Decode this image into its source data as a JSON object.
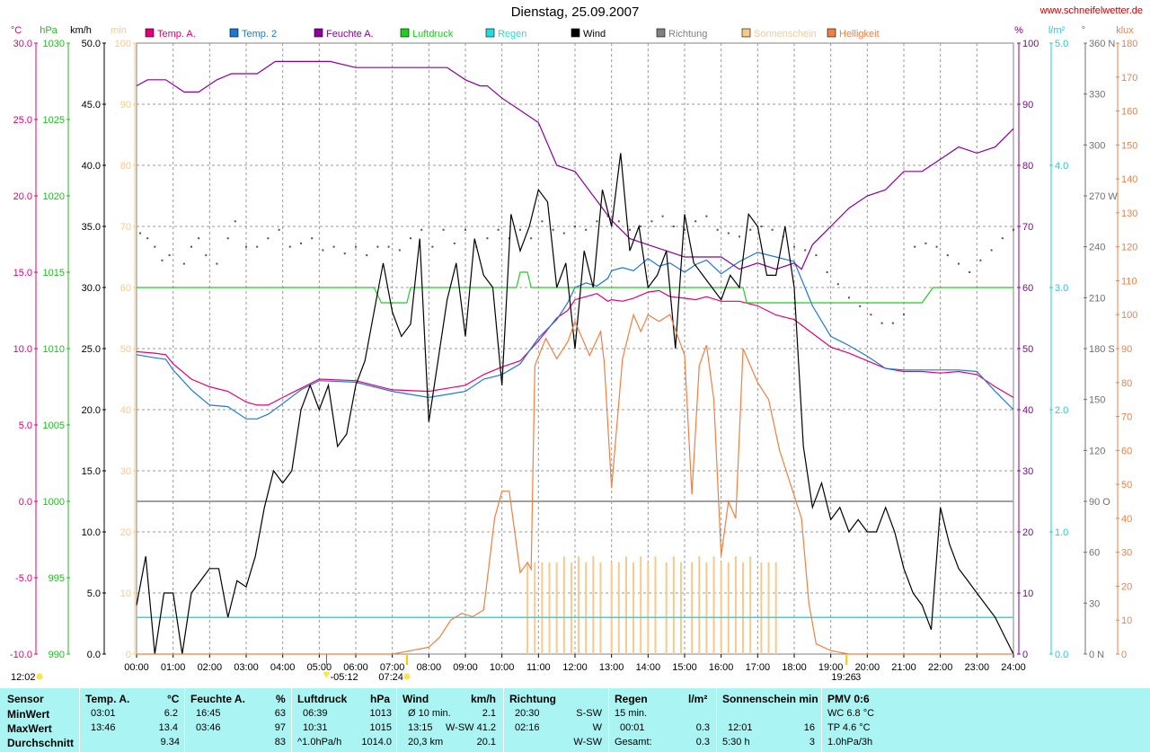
{
  "header": {
    "title": "Dienstag, 25.09.2007",
    "site": "www.schneifelwetter.de"
  },
  "legend": [
    {
      "label": "Temp. A.",
      "color": "#e0007a"
    },
    {
      "label": "Temp. 2",
      "color": "#1e78d2"
    },
    {
      "label": "Feuchte A.",
      "color": "#8a0099"
    },
    {
      "label": "Luftdruck",
      "color": "#22cc22"
    },
    {
      "label": "Regen",
      "color": "#22dddd"
    },
    {
      "label": "Wind",
      "color": "#000000"
    },
    {
      "label": "Richtung",
      "color": "#808080"
    },
    {
      "label": "Sonnenschein",
      "color": "#f7c98a"
    },
    {
      "label": "Helligkeit",
      "color": "#f08040"
    }
  ],
  "axis_units": {
    "temp": "°C",
    "hpa": "hPa",
    "kmh": "km/h",
    "min": "min",
    "pct": "%",
    "rain": "l/m²",
    "deg": "°",
    "klux": "klux"
  },
  "chart_data": {
    "type": "line",
    "x_ticks": [
      "00:00",
      "01:00",
      "02:00",
      "03:00",
      "04:00",
      "05:00",
      "06:00",
      "07:00",
      "08:00",
      "09:00",
      "10:00",
      "11:00",
      "12:00",
      "13:00",
      "14:00",
      "15:00",
      "16:00",
      "17:00",
      "18:00",
      "19:00",
      "20:00",
      "21:00",
      "22:00",
      "23:00",
      "24:00"
    ],
    "axes": {
      "temp": {
        "ticks": [
          "30.0",
          "25.0",
          "20.0",
          "15.0",
          "10.0",
          "5.0",
          "0.0",
          "-5.0",
          "-10.0"
        ],
        "range": [
          -10,
          30
        ]
      },
      "hpa": {
        "ticks": [
          "1030",
          "1025",
          "1020",
          "1015",
          "1010",
          "1005",
          "1000",
          "995",
          "990"
        ],
        "range": [
          990,
          1030
        ]
      },
      "kmh": {
        "ticks": [
          "50.0",
          "45.0",
          "40.0",
          "35.0",
          "30.0",
          "25.0",
          "20.0",
          "15.0",
          "10.0",
          "5.0",
          "0.0"
        ],
        "range": [
          0,
          50
        ]
      },
      "min": {
        "ticks": [
          "100",
          "90",
          "80",
          "70",
          "60",
          "50",
          "40",
          "30",
          "20",
          "10",
          "0"
        ],
        "range": [
          0,
          100
        ]
      },
      "pct": {
        "ticks": [
          "100",
          "90",
          "80",
          "70",
          "60",
          "50",
          "40",
          "30",
          "20",
          "10",
          "0"
        ],
        "range": [
          0,
          100
        ]
      },
      "rain": {
        "ticks": [
          "5.0",
          "4.0",
          "3.0",
          "2.0",
          "1.0",
          "0.0"
        ],
        "range": [
          0,
          5
        ]
      },
      "deg": {
        "ticks": [
          "360 N",
          "330",
          "300",
          "270 W",
          "240",
          "210",
          "180 S",
          "150",
          "120",
          "90 O",
          "60",
          "30",
          "0 N"
        ],
        "range": [
          0,
          360
        ]
      },
      "klux": {
        "ticks": [
          "180",
          "170",
          "160",
          "150",
          "140",
          "130",
          "120",
          "110",
          "100",
          "90",
          "80",
          "70",
          "60",
          "50",
          "40",
          "30",
          "20",
          "10",
          "0"
        ],
        "range": [
          0,
          180
        ]
      }
    },
    "series": [
      {
        "name": "Temp. A.",
        "axis": "temp",
        "color": "#e0007a",
        "x": [
          0,
          0.5,
          0.8,
          1,
          1.5,
          2,
          2.5,
          3,
          3.3,
          3.6,
          4,
          4.5,
          5,
          6,
          7,
          8,
          9,
          9.5,
          10,
          10.5,
          11,
          11.5,
          11.8,
          12,
          12.3,
          12.6,
          12.9,
          13,
          13.3,
          13.6,
          14,
          14.3,
          14.6,
          15,
          15.3,
          15.6,
          16,
          16.5,
          17,
          17.5,
          18,
          18.5,
          19,
          19.5,
          20,
          20.5,
          21,
          21.5,
          22,
          22.5,
          23,
          23.5,
          24
        ],
        "y": [
          9.8,
          9.7,
          9.6,
          9,
          8,
          7.5,
          7.2,
          6.5,
          6.3,
          6.3,
          6.8,
          7.4,
          8,
          7.9,
          7.3,
          7.2,
          7.6,
          8.3,
          8.8,
          9.2,
          10.5,
          12,
          12.5,
          13.2,
          13.4,
          13.6,
          13.1,
          13.2,
          13.1,
          13.3,
          13.7,
          13.8,
          13.4,
          13.3,
          13.2,
          13.4,
          13.1,
          13.1,
          12.8,
          12.2,
          11.9,
          11,
          10.1,
          9.7,
          9.2,
          8.7,
          8.5,
          8.5,
          8.4,
          8.5,
          8.3,
          7.5,
          6.8
        ]
      },
      {
        "name": "Temp. 2",
        "axis": "temp",
        "color": "#1e78d2",
        "x": [
          0,
          0.5,
          0.8,
          1,
          1.5,
          2,
          2.5,
          3,
          3.3,
          3.6,
          4,
          4.5,
          5,
          6,
          7,
          8,
          9,
          9.5,
          10,
          10.5,
          11,
          11.5,
          11.8,
          12,
          12.3,
          12.6,
          12.9,
          13,
          13.3,
          13.6,
          14,
          14.3,
          14.6,
          15,
          15.3,
          15.6,
          16,
          16.5,
          17,
          17.5,
          18,
          18.5,
          19,
          19.5,
          20,
          20.5,
          21,
          21.5,
          22,
          22.5,
          23,
          23.5,
          24
        ],
        "y": [
          9.6,
          9.4,
          9.3,
          8.6,
          7.3,
          6.3,
          6.2,
          5.4,
          5.4,
          5.7,
          6.4,
          7.3,
          7.9,
          7.8,
          7.2,
          6.8,
          7.2,
          8,
          8.3,
          9.0,
          10.7,
          11.9,
          13,
          14,
          14.3,
          14.1,
          14.6,
          15.1,
          15.3,
          15.1,
          15.9,
          15.4,
          15.6,
          15.0,
          15.5,
          15.8,
          14.9,
          15.7,
          16.3,
          16.0,
          15.7,
          12.8,
          10.8,
          10.2,
          9.5,
          8.7,
          8.6,
          8.6,
          8.6,
          8.6,
          8.5,
          7.2,
          6.0
        ]
      },
      {
        "name": "Feuchte A.",
        "axis": "pct",
        "color": "#8a0099",
        "x": [
          0,
          0.3,
          0.8,
          1.3,
          1.7,
          2.2,
          2.6,
          3,
          3.3,
          3.8,
          4.2,
          4.6,
          5,
          5.3,
          6,
          6.8,
          7.3,
          8,
          8.5,
          9,
          9.4,
          9.6,
          10,
          10.5,
          11,
          11.5,
          12,
          12.5,
          13,
          13.5,
          14,
          14.5,
          15,
          15.5,
          16,
          16.5,
          17,
          17.5,
          18,
          18.2,
          18.5,
          19,
          19.5,
          20,
          20.5,
          21,
          21.5,
          22,
          22.5,
          23,
          23.5,
          24
        ],
        "y": [
          93,
          94,
          94,
          92,
          92,
          94,
          95,
          95,
          95,
          97,
          97,
          97,
          97,
          97,
          96,
          96,
          96,
          96,
          96,
          94,
          93,
          93,
          91,
          89,
          87,
          80,
          79,
          75,
          71,
          68,
          67,
          66,
          65,
          65,
          65,
          63,
          64,
          63,
          64,
          63,
          67,
          70,
          73,
          75,
          76,
          79,
          79,
          81,
          83,
          82,
          83,
          86
        ]
      },
      {
        "name": "Luftdruck",
        "axis": "hpa",
        "color": "#22cc22",
        "x": [
          0,
          6.5,
          6.7,
          7.0,
          7.4,
          7.5,
          10.4,
          10.5,
          10.7,
          10.8,
          16.6,
          16.7,
          19.6,
          19.7,
          19.9,
          20.1,
          20.3,
          21.5,
          21.8,
          22,
          24
        ],
        "y": [
          1014,
          1014,
          1013,
          1013,
          1013,
          1014,
          1014,
          1015,
          1015,
          1014,
          1014,
          1013,
          1013,
          1013,
          1013,
          1013,
          1013,
          1013,
          1014,
          1014,
          1014
        ]
      },
      {
        "name": "Regen",
        "axis": "rain",
        "color": "#22dddd",
        "x": [
          0,
          24
        ],
        "y": [
          0.3,
          0.3
        ]
      },
      {
        "name": "Wind",
        "axis": "kmh",
        "color": "#000000",
        "x": [
          0,
          0.25,
          0.5,
          0.75,
          1,
          1.25,
          1.5,
          1.75,
          2,
          2.25,
          2.5,
          2.75,
          3,
          3.25,
          3.5,
          3.75,
          4,
          4.25,
          4.5,
          4.75,
          5,
          5.25,
          5.5,
          5.75,
          6,
          6.25,
          6.5,
          6.75,
          7,
          7.25,
          7.5,
          7.75,
          8,
          8.25,
          8.5,
          8.75,
          9,
          9.25,
          9.5,
          9.75,
          10,
          10.25,
          10.5,
          10.75,
          11,
          11.25,
          11.5,
          11.75,
          12,
          12.25,
          12.5,
          12.75,
          13,
          13.25,
          13.5,
          13.75,
          14,
          14.25,
          14.5,
          14.75,
          15,
          15.25,
          15.5,
          15.75,
          16,
          16.25,
          16.5,
          16.75,
          17,
          17.25,
          17.5,
          17.75,
          18,
          18.25,
          18.5,
          18.75,
          19,
          19.25,
          19.5,
          19.75,
          20,
          20.25,
          20.5,
          20.75,
          21,
          21.25,
          21.5,
          21.75,
          22,
          22.25,
          22.5,
          22.75,
          23,
          23.25,
          23.5,
          23.75,
          24
        ],
        "y": [
          4,
          8,
          0,
          5,
          5,
          0,
          5,
          6,
          7,
          7,
          3,
          6,
          5.5,
          8,
          12,
          15,
          14,
          15,
          20,
          22,
          20,
          22,
          17,
          18,
          22,
          24,
          28,
          32,
          28,
          26,
          27,
          34,
          19,
          24,
          29,
          32,
          26,
          34,
          31,
          30,
          22,
          36,
          33,
          35,
          38,
          37,
          30,
          32,
          25,
          33,
          30,
          38,
          35,
          41,
          33,
          35,
          30,
          31,
          33,
          25,
          36,
          32,
          31,
          30,
          29,
          31,
          30,
          36,
          35,
          31,
          31,
          35,
          30,
          17,
          12,
          14,
          11,
          12,
          10,
          11,
          10,
          10,
          12,
          10,
          7,
          5,
          4,
          2,
          12,
          9,
          7,
          6,
          5,
          4,
          3,
          1.5,
          0
        ]
      },
      {
        "name": "Helligkeit",
        "axis": "klux",
        "color": "#f08040",
        "x": [
          0,
          7.0,
          7.5,
          8.0,
          8.3,
          8.6,
          8.9,
          9.2,
          9.5,
          9.8,
          10.0,
          10.2,
          10.5,
          10.7,
          10.8,
          10.9,
          11.2,
          11.5,
          11.8,
          12.0,
          12.2,
          12.4,
          12.7,
          12.8,
          13.0,
          13.3,
          13.6,
          13.8,
          14.0,
          14.3,
          14.6,
          14.9,
          15.0,
          15.2,
          15.4,
          15.6,
          15.8,
          16.0,
          16.2,
          16.4,
          16.6,
          16.8,
          17.0,
          17.3,
          17.6,
          17.9,
          18.2,
          18.4,
          18.6,
          19.0,
          19.5,
          19.8,
          24
        ],
        "y": [
          0,
          0,
          1,
          2,
          5,
          10,
          12,
          11,
          13,
          40,
          48,
          48,
          24,
          27,
          25,
          85,
          93,
          87,
          92,
          98,
          93,
          88,
          95,
          86,
          49,
          87,
          100,
          95,
          100,
          98,
          100,
          91,
          88,
          47,
          85,
          91,
          75,
          29,
          45,
          40,
          90,
          85,
          80,
          75,
          60,
          50,
          40,
          15,
          3,
          1,
          0,
          0,
          0
        ]
      }
    ],
    "richtung_dots": {
      "x": [
        0.1,
        0.3,
        0.5,
        0.7,
        0.9,
        1.3,
        1.5,
        1.7,
        1.9,
        2.2,
        2.5,
        2.7,
        3.0,
        3.3,
        3.6,
        3.9,
        4.2,
        4.5,
        4.8,
        5.1,
        5.4,
        5.7,
        6.0,
        6.3,
        6.6,
        6.9,
        7.2,
        7.5,
        7.8,
        8.1,
        8.4,
        8.7,
        9.0,
        9.3,
        9.6,
        9.9,
        10.2,
        10.5,
        10.8,
        11.1,
        11.4,
        11.7,
        12.0,
        12.3,
        12.6,
        12.9,
        13.2,
        13.5,
        13.8,
        14.1,
        14.4,
        14.7,
        15.0,
        15.3,
        15.6,
        15.9,
        16.2,
        16.5,
        16.8,
        17.1,
        17.4,
        17.7,
        18.0,
        18.3,
        18.6,
        18.9,
        19.2,
        19.5,
        19.8,
        20.1,
        20.4,
        20.7,
        21.0,
        21.3,
        21.6,
        21.9,
        22.2,
        22.5,
        22.8,
        23.1,
        23.4,
        23.7,
        24.0
      ],
      "y": [
        248,
        245,
        240,
        232,
        235,
        230,
        240,
        245,
        235,
        230,
        245,
        255,
        240,
        240,
        245,
        250,
        240,
        242,
        245,
        238,
        240,
        236,
        240,
        235,
        240,
        240,
        238,
        245,
        250,
        240,
        250,
        242,
        250,
        240,
        245,
        250,
        245,
        250,
        245,
        255,
        250,
        248,
        252,
        250,
        255,
        258,
        255,
        250,
        252,
        255,
        258,
        252,
        250,
        255,
        258,
        250,
        248,
        246,
        250,
        252,
        250,
        246,
        240,
        238,
        235,
        225,
        218,
        210,
        205,
        200,
        195,
        195,
        200,
        240,
        242,
        240,
        235,
        230,
        225,
        232,
        238,
        245,
        250
      ]
    },
    "sunshine_bars": {
      "x": [
        10.7,
        10.9,
        11.1,
        11.3,
        11.5,
        11.7,
        11.9,
        12.1,
        12.3,
        12.5,
        12.7,
        13.0,
        13.2,
        13.4,
        13.6,
        13.8,
        14.0,
        14.2,
        14.5,
        14.7,
        14.9,
        15.2,
        15.4,
        15.6,
        15.8,
        16.0,
        16.2,
        16.4,
        16.6,
        16.8,
        17.1,
        17.3,
        17.5
      ],
      "y": [
        15,
        15,
        15,
        15,
        15,
        16,
        15,
        16,
        15,
        16,
        15,
        15,
        15,
        16,
        15,
        16,
        15,
        16,
        15,
        16,
        15,
        15,
        16,
        15,
        16,
        15,
        15,
        16,
        15,
        16,
        15,
        15,
        15
      ]
    },
    "lines": {
      "wind_avg": 20.1,
      "kmh_12_5_line": 12.5
    },
    "markers": {
      "sunrise": "07:24",
      "sunset": "19:26",
      "moon_down": "05:12",
      "moon_up": "12:02",
      "moon_up2": "19:26"
    }
  },
  "marker_labels": {
    "left_bottom": "12:02",
    "moon": "-05:12",
    "sunrise": "07:24",
    "sunset": "19:26",
    "sunset_suffix": "3"
  },
  "stats": {
    "row_labels": [
      "Sensor",
      "MinWert",
      "MaxWert",
      "Durchschnitt"
    ],
    "temp": {
      "title": "Temp. A.",
      "unit": "°C",
      "min_time": "03:01",
      "min": "6.2",
      "max_time": "13:46",
      "max": "13.4",
      "avg": "9.34"
    },
    "feuchte": {
      "title": "Feuchte A.",
      "unit": "%",
      "min_time": "16:45",
      "min": "63",
      "max_time": "03:46",
      "max": "97",
      "avg": "83"
    },
    "luftdruck": {
      "title": "Luftdruck",
      "unit": "hPa",
      "min_time": "06:39",
      "min": "1013",
      "max_time": "10:31",
      "max": "1015",
      "avg_label": "^1.0hPa/h",
      "avg": "1014.0"
    },
    "wind": {
      "title": "Wind",
      "unit": "km/h",
      "min_label": "Ø 10 min.",
      "min": "2.1",
      "max_time": "13:15",
      "max_dir": "W-SW",
      "max": "41.2",
      "avg_label": "20,3 km",
      "avg": "20.1"
    },
    "richtung": {
      "title": "Richtung",
      "min_time": "20:30",
      "min": "S-SW",
      "max_time": "02:16",
      "max": "W",
      "avg": "W-SW"
    },
    "regen": {
      "title": "Regen",
      "unit": "l/m²",
      "min_label": "15 min.",
      "max_time": "00:01",
      "max": "0.3",
      "avg_label": "Gesamt:",
      "avg": "0.3"
    },
    "sonne": {
      "title": "Sonnenschein min",
      "max_time": "12:01",
      "max": "16",
      "avg_label": "5:30 h",
      "avg": "3"
    },
    "pmv": {
      "title": "PMV 0:6",
      "line1": "WC 6.8 °C",
      "line2": "TP 4.6 °C",
      "line3": "1.0hPa/3h"
    }
  }
}
